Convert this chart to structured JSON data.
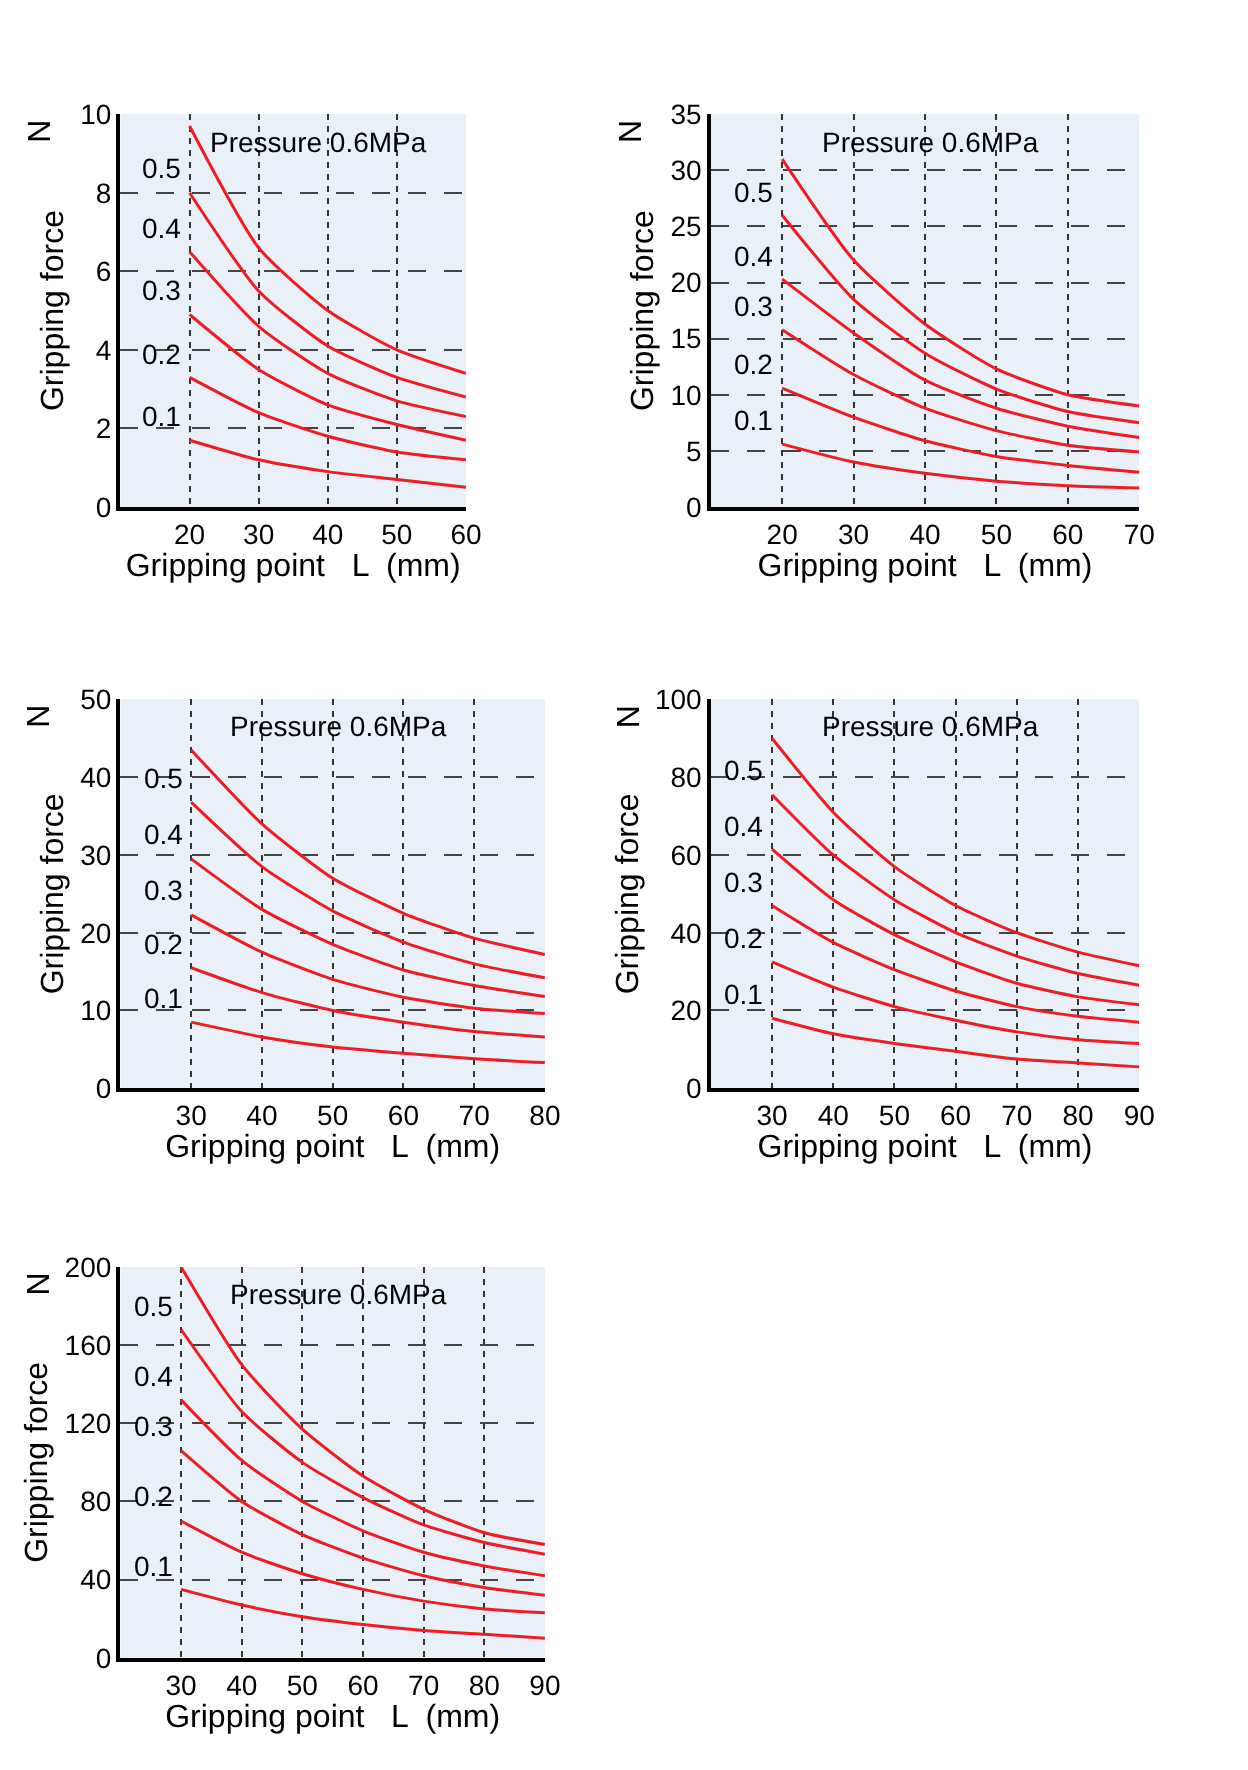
{
  "chart_data": [
    {
      "type": "line",
      "xlabel": "Gripping point   L  (mm)",
      "ylabel": "Gripping force",
      "annotations": [
        "Pressure 0.6MPa",
        "N"
      ],
      "grid": true,
      "legend": false,
      "marker": "none",
      "line_style": "solid",
      "xlim": [
        10,
        60
      ],
      "xticks": [
        20,
        30,
        40,
        50,
        60
      ],
      "ylim": [
        0,
        10
      ],
      "yticks": [
        0,
        2,
        4,
        6,
        8,
        10
      ],
      "x": [
        20,
        30,
        40,
        50,
        60
      ],
      "series": [
        {
          "color": "#ee1c25",
          "values": [
            9.7,
            6.6,
            5.0,
            4.0,
            3.4
          ]
        },
        {
          "name": "0.5",
          "color": "#ee1c25",
          "values": [
            8.0,
            5.5,
            4.1,
            3.3,
            2.8
          ]
        },
        {
          "name": "0.4",
          "color": "#ee1c25",
          "values": [
            6.5,
            4.6,
            3.4,
            2.7,
            2.3
          ]
        },
        {
          "name": "0.3",
          "color": "#ee1c25",
          "values": [
            4.9,
            3.5,
            2.6,
            2.1,
            1.7
          ]
        },
        {
          "name": "0.2",
          "color": "#ee1c25",
          "values": [
            3.3,
            2.4,
            1.8,
            1.4,
            1.2
          ]
        },
        {
          "name": "0.1",
          "color": "#ee1c25",
          "values": [
            1.7,
            1.2,
            0.9,
            0.7,
            0.5
          ]
        }
      ]
    },
    {
      "type": "line",
      "xlabel": "Gripping point   L  (mm)",
      "ylabel": "Gripping force",
      "annotations": [
        "Pressure 0.6MPa",
        "N"
      ],
      "grid": true,
      "legend": false,
      "marker": "none",
      "line_style": "solid",
      "xlim": [
        10,
        70
      ],
      "xticks": [
        20,
        30,
        40,
        50,
        60,
        70
      ],
      "ylim": [
        0,
        35
      ],
      "yticks": [
        0,
        5,
        10,
        15,
        20,
        25,
        30,
        35
      ],
      "x": [
        20,
        30,
        40,
        50,
        60,
        70
      ],
      "series": [
        {
          "color": "#ee1c25",
          "values": [
            31,
            22,
            16.3,
            12.3,
            10,
            9
          ]
        },
        {
          "name": "0.5",
          "color": "#ee1c25",
          "values": [
            26,
            18.5,
            13.7,
            10.5,
            8.5,
            7.5
          ]
        },
        {
          "name": "0.4",
          "color": "#ee1c25",
          "values": [
            20.3,
            15.5,
            11.3,
            8.8,
            7.2,
            6.2
          ]
        },
        {
          "name": "0.3",
          "color": "#ee1c25",
          "values": [
            15.8,
            11.8,
            8.8,
            6.8,
            5.5,
            4.9
          ]
        },
        {
          "name": "0.2",
          "color": "#ee1c25",
          "values": [
            10.6,
            8,
            5.9,
            4.5,
            3.7,
            3.1
          ]
        },
        {
          "name": "0.1",
          "color": "#ee1c25",
          "values": [
            5.6,
            4.0,
            3.0,
            2.3,
            1.9,
            1.7
          ]
        }
      ]
    },
    {
      "type": "line",
      "xlabel": "Gripping point   L  (mm)",
      "ylabel": "Gripping force",
      "annotations": [
        "Pressure 0.6MPa",
        "N"
      ],
      "grid": true,
      "legend": false,
      "marker": "none",
      "line_style": "solid",
      "xlim": [
        20,
        80
      ],
      "xticks": [
        30,
        40,
        50,
        60,
        70,
        80
      ],
      "ylim": [
        0,
        50
      ],
      "yticks": [
        0,
        10,
        20,
        30,
        40,
        50
      ],
      "x": [
        30,
        40,
        50,
        60,
        70,
        80
      ],
      "series": [
        {
          "color": "#ee1c25",
          "values": [
            43.5,
            34,
            27,
            22.5,
            19.3,
            17.2
          ]
        },
        {
          "name": "0.5",
          "color": "#ee1c25",
          "values": [
            36.8,
            28.5,
            22.8,
            18.8,
            16,
            14.2
          ]
        },
        {
          "name": "0.4",
          "color": "#ee1c25",
          "values": [
            29.5,
            23,
            18.5,
            15.2,
            13.2,
            11.8
          ]
        },
        {
          "name": "0.3",
          "color": "#ee1c25",
          "values": [
            22.3,
            17.5,
            14,
            11.7,
            10.3,
            9.6
          ]
        },
        {
          "name": "0.2",
          "color": "#ee1c25",
          "values": [
            15.5,
            12.3,
            10,
            8.5,
            7.3,
            6.6
          ]
        },
        {
          "name": "0.1",
          "color": "#ee1c25",
          "values": [
            8.5,
            6.6,
            5.3,
            4.5,
            3.8,
            3.3
          ]
        }
      ]
    },
    {
      "type": "line",
      "xlabel": "Gripping point   L  (mm)",
      "ylabel": "Gripping force",
      "annotations": [
        "Pressure 0.6MPa",
        "N"
      ],
      "grid": true,
      "legend": false,
      "marker": "none",
      "line_style": "solid",
      "xlim": [
        20,
        90
      ],
      "xticks": [
        30,
        40,
        50,
        60,
        70,
        80,
        90
      ],
      "ylim": [
        0,
        100
      ],
      "yticks": [
        0,
        20,
        40,
        60,
        80,
        100
      ],
      "x": [
        30,
        40,
        50,
        60,
        70,
        80,
        90
      ],
      "series": [
        {
          "color": "#ee1c25",
          "values": [
            90,
            71,
            57,
            47,
            40,
            35,
            31.5
          ]
        },
        {
          "name": "0.5",
          "color": "#ee1c25",
          "values": [
            75.5,
            60,
            48.5,
            40,
            34,
            29.5,
            26.5
          ]
        },
        {
          "name": "0.4",
          "color": "#ee1c25",
          "values": [
            61.5,
            48.5,
            39.5,
            32.5,
            27,
            23.5,
            21.5
          ]
        },
        {
          "name": "0.3",
          "color": "#ee1c25",
          "values": [
            47,
            37.5,
            30.5,
            25,
            21,
            18.5,
            17
          ]
        },
        {
          "name": "0.2",
          "color": "#ee1c25",
          "values": [
            32.5,
            26,
            21,
            17.5,
            14.5,
            12.5,
            11.5
          ]
        },
        {
          "name": "0.1",
          "color": "#ee1c25",
          "values": [
            18,
            14,
            11.5,
            9.5,
            7.5,
            6.5,
            5.5
          ]
        }
      ]
    },
    {
      "type": "line",
      "xlabel": "Gripping point   L  (mm)",
      "ylabel": "Gripping force",
      "annotations": [
        "Pressure 0.6MPa",
        "N"
      ],
      "grid": true,
      "legend": false,
      "marker": "none",
      "line_style": "solid",
      "xlim": [
        20,
        90
      ],
      "xticks": [
        30,
        40,
        50,
        60,
        70,
        80,
        90
      ],
      "ylim": [
        0,
        200
      ],
      "yticks": [
        0,
        40,
        80,
        120,
        160,
        200
      ],
      "x": [
        30,
        40,
        50,
        60,
        70,
        80,
        90
      ],
      "series": [
        {
          "color": "#ee1c25",
          "values": [
            200,
            150,
            117,
            93,
            76,
            64,
            58
          ]
        },
        {
          "name": "0.5",
          "color": "#ee1c25",
          "values": [
            168,
            126,
            100,
            82,
            68,
            59,
            53
          ]
        },
        {
          "name": "0.4",
          "color": "#ee1c25",
          "values": [
            132,
            101,
            80,
            65,
            54,
            47,
            42
          ]
        },
        {
          "name": "0.3",
          "color": "#ee1c25",
          "values": [
            106,
            80,
            63,
            51,
            42,
            36,
            32
          ]
        },
        {
          "name": "0.2",
          "color": "#ee1c25",
          "values": [
            70,
            54,
            43,
            35,
            29,
            25,
            23
          ]
        },
        {
          "name": "0.1",
          "color": "#ee1c25",
          "values": [
            35,
            27,
            21,
            17,
            14,
            12,
            10
          ]
        }
      ]
    }
  ]
}
